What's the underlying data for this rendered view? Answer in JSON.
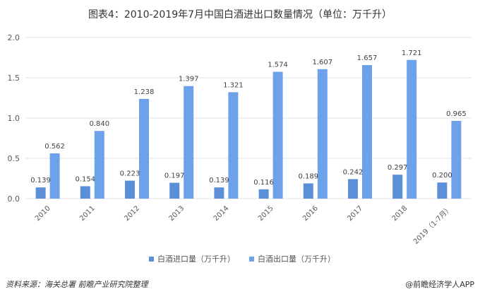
{
  "colors": {
    "import": "#5b8fd8",
    "export": "#6da2ea",
    "grid": "#e3e3e3",
    "text": "#595959"
  },
  "chart_data": {
    "type": "bar",
    "title": "图表4：2010-2019年7月中国白酒进出口数量情况（单位：万千升）",
    "categories": [
      "2010",
      "2011",
      "2012",
      "2013",
      "2014",
      "2015",
      "2016",
      "2017",
      "2018",
      "2019（1-7月）"
    ],
    "series": [
      {
        "name": "白酒进口量（万千升）",
        "values": [
          0.139,
          0.154,
          0.223,
          0.197,
          0.139,
          0.116,
          0.189,
          0.242,
          0.297,
          0.2
        ]
      },
      {
        "name": "白酒出口量（万千升）",
        "values": [
          0.562,
          0.84,
          1.238,
          1.397,
          1.321,
          1.574,
          1.607,
          1.657,
          1.721,
          0.965
        ]
      }
    ],
    "ylim": [
      0,
      2.0
    ],
    "yticks": [
      0.0,
      0.5,
      1.0,
      1.5,
      2.0
    ],
    "ytick_labels": [
      "0.0",
      "0.5",
      "1.0",
      "1.5",
      "2.0"
    ],
    "grid": true,
    "legend_position": "bottom"
  },
  "footer": {
    "source": "资料来源：海关总署 前瞻产业研究院整理",
    "brand": "@前瞻经济学人APP"
  }
}
